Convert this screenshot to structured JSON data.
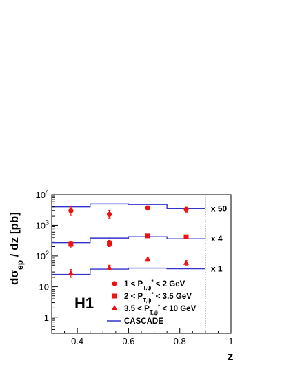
{
  "chart_data": {
    "type": "scatter",
    "xlabel": "z",
    "ylabel_parts": {
      "d": "dσ",
      "sub": "ep",
      "rest": " / dz [pb]"
    },
    "xlim": [
      0.3,
      1.0
    ],
    "ylim": [
      0.3,
      10000
    ],
    "yscale": "log",
    "x_ticks": [
      0.4,
      0.6,
      0.8,
      1.0
    ],
    "x_tick_labels": [
      "0.4",
      "0.6",
      "0.8",
      "1"
    ],
    "y_ticks": [
      1,
      10,
      100,
      1000,
      10000
    ],
    "y_tick_labels": [
      {
        "base": "1",
        "exp": ""
      },
      {
        "base": "10",
        "exp": ""
      },
      {
        "base": "10",
        "exp": "2"
      },
      {
        "base": "10",
        "exp": "3"
      },
      {
        "base": "10",
        "exp": "4"
      }
    ],
    "vertical_line_x": 0.9,
    "bin_edges": [
      0.3,
      0.45,
      0.6,
      0.75,
      0.9
    ],
    "bin_centers": [
      0.375,
      0.525,
      0.675,
      0.825
    ],
    "series": [
      {
        "legend": {
          "pre": "1 < P",
          "sub": "T,ψ",
          "sup": "*",
          "post": " < 2 GeV"
        },
        "marker": "circle",
        "multiplier": "x 50",
        "values": [
          3000,
          2300,
          3700,
          3300
        ],
        "err_low": [
          2100,
          1700,
          3200,
          2700
        ],
        "err_high": [
          4000,
          3000,
          4300,
          3900
        ],
        "cascade": [
          4000,
          5000,
          4800,
          3500
        ]
      },
      {
        "legend": {
          "pre": "2 < P",
          "sub": "T,ψ",
          "sup": "*",
          "post": " < 3.5 GeV"
        },
        "marker": "square",
        "multiplier": "x 4",
        "values": [
          240,
          260,
          450,
          420
        ],
        "err_low": [
          180,
          200,
          420,
          390
        ],
        "err_high": [
          300,
          320,
          480,
          450
        ],
        "cascade": [
          270,
          380,
          420,
          360
        ]
      },
      {
        "legend": {
          "pre": "3.5 < P",
          "sub": "T,ψ",
          "sup": "*",
          "post": " < 10 GeV"
        },
        "marker": "triangle",
        "multiplier": "x 1",
        "values": [
          28,
          42,
          80,
          60
        ],
        "err_low": [
          20,
          35,
          70,
          50
        ],
        "err_high": [
          36,
          50,
          90,
          70
        ],
        "cascade": [
          25,
          37,
          40,
          38
        ]
      }
    ],
    "model_legend": "CASCADE",
    "experiment_label": "H1",
    "marker_color": "#ee1111",
    "model_color": "#3333cc"
  }
}
